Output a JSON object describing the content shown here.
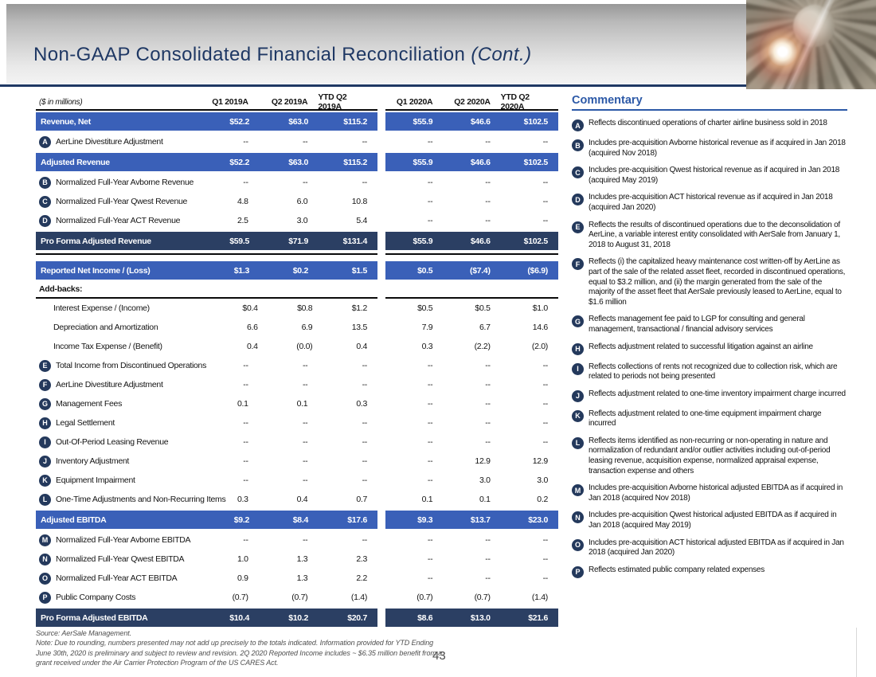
{
  "slide": {
    "title": "Non-GAAP Consolidated Financial Reconciliation ",
    "title_cont": "(Cont.)",
    "page_number": "43"
  },
  "colors": {
    "highlight_row": "#3A60B8",
    "total_row": "#2B3F63",
    "badge": "#24395C",
    "title_navy": "#1F3864",
    "commentary_blue": "#2C59A7"
  },
  "table": {
    "unit_label": "($ in millions)",
    "columns": [
      "Q1 2019A",
      "Q2 2019A",
      "YTD Q2 2019A",
      "Q1 2020A",
      "Q2 2020A",
      "YTD Q2 2020A"
    ],
    "rows": [
      {
        "type": "hl",
        "letter": null,
        "label": "Revenue, Net",
        "values": [
          "$52.2",
          "$63.0",
          "$115.2",
          "$55.9",
          "$46.6",
          "$102.5"
        ]
      },
      {
        "type": "norm",
        "letter": "A",
        "label": "AerLine Divestiture Adjustment",
        "values": [
          "--",
          "--",
          "--",
          "--",
          "--",
          "--"
        ]
      },
      {
        "type": "hl",
        "letter": null,
        "label": "Adjusted Revenue",
        "values": [
          "$52.2",
          "$63.0",
          "$115.2",
          "$55.9",
          "$46.6",
          "$102.5"
        ]
      },
      {
        "type": "norm",
        "letter": "B",
        "label": "Normalized Full-Year Avborne Revenue",
        "values": [
          "--",
          "--",
          "--",
          "--",
          "--",
          "--"
        ]
      },
      {
        "type": "norm",
        "letter": "C",
        "label": "Normalized Full-Year Qwest Revenue",
        "values": [
          "4.8",
          "6.0",
          "10.8",
          "--",
          "--",
          "--"
        ]
      },
      {
        "type": "norm",
        "letter": "D",
        "label": "Normalized Full-Year ACT Revenue",
        "values": [
          "2.5",
          "3.0",
          "5.4",
          "--",
          "--",
          "--"
        ]
      },
      {
        "type": "tot",
        "letter": null,
        "label": "Pro Forma Adjusted Revenue",
        "values": [
          "$59.5",
          "$71.9",
          "$131.4",
          "$55.9",
          "$46.6",
          "$102.5"
        ]
      },
      {
        "type": "rule"
      },
      {
        "type": "hl",
        "letter": null,
        "label": "Reported Net Income / (Loss)",
        "values": [
          "$1.3",
          "$0.2",
          "$1.5",
          "$0.5",
          "($7.4)",
          "($6.9)"
        ]
      },
      {
        "type": "sub",
        "letter": null,
        "label": "Add-backs:",
        "values": [
          "",
          "",
          "",
          "",
          "",
          ""
        ]
      },
      {
        "type": "norm",
        "letter": null,
        "indent": true,
        "label": "Interest Expense / (Income)",
        "values": [
          "$0.4",
          "$0.8",
          "$1.2",
          "$0.5",
          "$0.5",
          "$1.0"
        ]
      },
      {
        "type": "norm",
        "letter": null,
        "indent": true,
        "label": "Depreciation and Amortization",
        "values": [
          "6.6",
          "6.9",
          "13.5",
          "7.9",
          "6.7",
          "14.6"
        ]
      },
      {
        "type": "norm",
        "letter": null,
        "indent": true,
        "label": "Income Tax Expense / (Benefit)",
        "values": [
          "0.4",
          "(0.0)",
          "0.4",
          "0.3",
          "(2.2)",
          "(2.0)"
        ]
      },
      {
        "type": "norm",
        "letter": "E",
        "label": "Total Income from Discontinued Operations",
        "values": [
          "--",
          "--",
          "--",
          "--",
          "--",
          "--"
        ]
      },
      {
        "type": "norm",
        "letter": "F",
        "label": "AerLine Divestiture Adjustment",
        "values": [
          "--",
          "--",
          "--",
          "--",
          "--",
          "--"
        ]
      },
      {
        "type": "norm",
        "letter": "G",
        "label": "Management Fees",
        "values": [
          "0.1",
          "0.1",
          "0.3",
          "--",
          "--",
          "--"
        ]
      },
      {
        "type": "norm",
        "letter": "H",
        "label": "Legal Settlement",
        "values": [
          "--",
          "--",
          "--",
          "--",
          "--",
          "--"
        ]
      },
      {
        "type": "norm",
        "letter": "I",
        "label": "Out-Of-Period Leasing Revenue",
        "values": [
          "--",
          "--",
          "--",
          "--",
          "--",
          "--"
        ]
      },
      {
        "type": "norm",
        "letter": "J",
        "label": "Inventory Adjustment",
        "values": [
          "--",
          "--",
          "--",
          "--",
          "12.9",
          "12.9"
        ]
      },
      {
        "type": "norm",
        "letter": "K",
        "label": "Equipment Impairment",
        "values": [
          "--",
          "--",
          "--",
          "--",
          "3.0",
          "3.0"
        ]
      },
      {
        "type": "norm",
        "letter": "L",
        "label": "One-Time Adjustments and Non-Recurring Items",
        "values": [
          "0.3",
          "0.4",
          "0.7",
          "0.1",
          "0.1",
          "0.2"
        ]
      },
      {
        "type": "hl",
        "letter": null,
        "label": "Adjusted EBITDA",
        "values": [
          "$9.2",
          "$8.4",
          "$17.6",
          "$9.3",
          "$13.7",
          "$23.0"
        ]
      },
      {
        "type": "norm",
        "letter": "M",
        "label": "Normalized Full-Year Avborne EBITDA",
        "values": [
          "--",
          "--",
          "--",
          "--",
          "--",
          "--"
        ]
      },
      {
        "type": "norm",
        "letter": "N",
        "label": "Normalized Full-Year Qwest EBITDA",
        "values": [
          "1.0",
          "1.3",
          "2.3",
          "--",
          "--",
          "--"
        ]
      },
      {
        "type": "norm",
        "letter": "O",
        "label": "Normalized Full-Year ACT EBITDA",
        "values": [
          "0.9",
          "1.3",
          "2.2",
          "--",
          "--",
          "--"
        ]
      },
      {
        "type": "norm",
        "letter": "P",
        "label": "Public Company Costs",
        "values": [
          "(0.7)",
          "(0.7)",
          "(1.4)",
          "(0.7)",
          "(0.7)",
          "(1.4)"
        ]
      },
      {
        "type": "tot",
        "letter": null,
        "label": "Pro Forma Adjusted EBITDA",
        "values": [
          "$10.4",
          "$10.2",
          "$20.7",
          "$8.6",
          "$13.0",
          "$21.6"
        ]
      }
    ]
  },
  "commentary": {
    "title": "Commentary",
    "items": [
      {
        "letter": "A",
        "text": "Reflects discontinued operations of charter airline business sold in 2018"
      },
      {
        "letter": "B",
        "text": "Includes pre-acquisition Avborne historical revenue as if acquired in Jan 2018 (acquired Nov 2018)"
      },
      {
        "letter": "C",
        "text": "Includes pre-acquisition Qwest historical revenue as if acquired in Jan 2018 (acquired May 2019)"
      },
      {
        "letter": "D",
        "text": "Includes pre-acquisition ACT historical revenue as if acquired in Jan 2018 (acquired Jan 2020)"
      },
      {
        "letter": "E",
        "text": "Reflects the results of discontinued operations due to the deconsolidation of AerLine, a variable interest entity consolidated with AerSale from January 1, 2018 to August 31, 2018"
      },
      {
        "letter": "F",
        "text": "Reflects (i) the capitalized heavy maintenance cost written-off by AerLine as part of the sale of the related asset fleet, recorded in discontinued operations, equal to $3.2 million, and (ii) the margin generated from the sale of the majority of the asset fleet that AerSale previously leased to AerLine, equal to $1.6 million"
      },
      {
        "letter": "G",
        "text": "Reflects management fee paid to LGP for consulting and general management, transactional / financial advisory services"
      },
      {
        "letter": "H",
        "text": "Reflects adjustment related to successful litigation against an airline"
      },
      {
        "letter": "I",
        "text": "Reflects collections of rents not recognized due to collection risk, which are related to periods not being presented"
      },
      {
        "letter": "J",
        "text": "Reflects adjustment related to one-time inventory impairment charge incurred"
      },
      {
        "letter": "K",
        "text": "Reflects adjustment related to one-time equipment impairment charge incurred"
      },
      {
        "letter": "L",
        "text": "Reflects items identified as non-recurring or non-operating in nature and normalization of redundant and/or outlier activities including out-of-period leasing revenue, acquisition expense, normalized appraisal expense, transaction expense and others"
      },
      {
        "letter": "M",
        "text": "Includes pre-acquisition Avborne historical adjusted EBITDA as if acquired in Jan 2018 (acquired Nov 2018)"
      },
      {
        "letter": "N",
        "text": "Includes pre-acquisition Qwest historical adjusted EBITDA as if acquired in Jan 2018 (acquired May 2019)"
      },
      {
        "letter": "O",
        "text": "Includes pre-acquisition ACT historical adjusted EBITDA as if acquired in Jan 2018 (acquired Jan 2020)"
      },
      {
        "letter": "P",
        "text": "Reflects estimated public company related expenses"
      }
    ]
  },
  "footer": {
    "source": "Source: AerSale Management.",
    "note": "Note: Due to rounding, numbers presented may not add up precisely to the totals indicated. Information provided for YTD Ending June 30th, 2020 is preliminary and subject to review and revision. 2Q 2020 Reported Income includes ~ $6.35 million benefit from a grant received under the Air Carrier Protection Program of the US CARES Act."
  }
}
